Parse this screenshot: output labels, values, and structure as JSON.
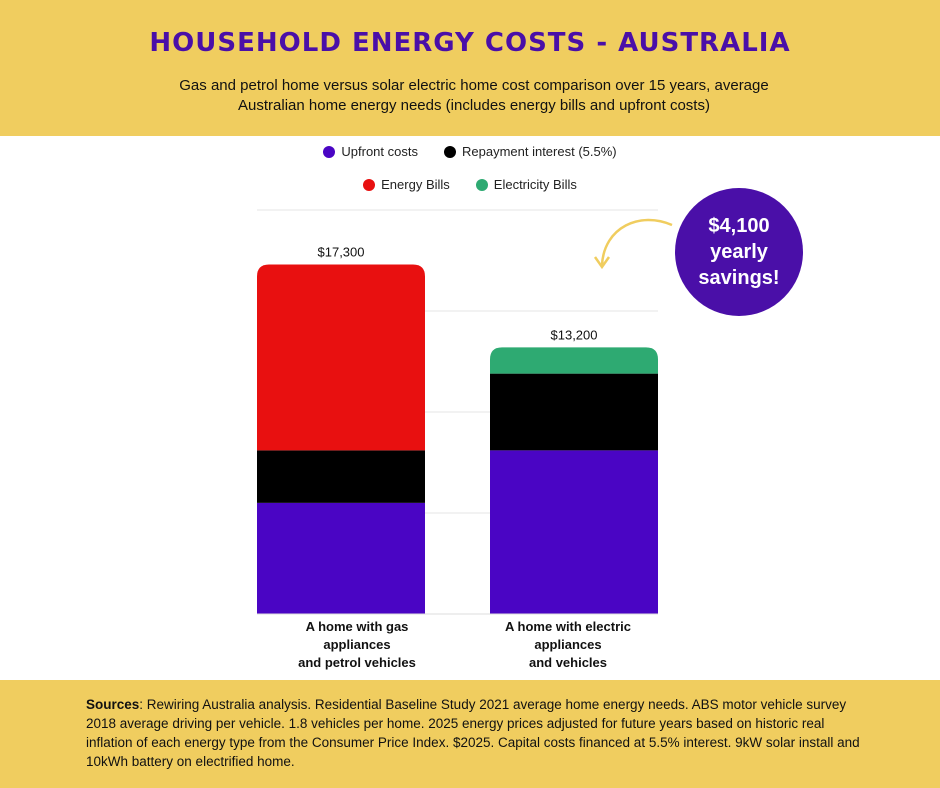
{
  "header": {
    "title": "Household energy costs - Australia",
    "subtitle": "Gas and petrol home versus solar electric home cost comparison over 15 years,  average Australian home energy needs (includes energy bills and upfront costs)"
  },
  "legend": {
    "row1": [
      {
        "label": "Upfront costs",
        "color": "#4a05c4"
      },
      {
        "label": "Repayment interest (5.5%)",
        "color": "#000000"
      }
    ],
    "row2": [
      {
        "label": "Energy Bills",
        "color": "#e81010"
      },
      {
        "label": "Electricity Bills",
        "color": "#2eaa72"
      }
    ]
  },
  "chart_data": {
    "type": "bar",
    "stacked": true,
    "categories": [
      "A home with gas appliances and petrol vehicles",
      "A home with electric appliances and vehicles"
    ],
    "category_labels": [
      "A home with gas\nappliances\nand petrol vehicles",
      "A home with electric\nappliances\nand vehicles"
    ],
    "series": [
      {
        "name": "Upfront costs",
        "color": "#4a05c4",
        "values": [
          5500,
          8100
        ]
      },
      {
        "name": "Repayment interest (5.5%)",
        "color": "#000000",
        "values": [
          2600,
          3800
        ]
      },
      {
        "name": "Energy Bills",
        "color": "#e81010",
        "values": [
          9200,
          0
        ]
      },
      {
        "name": "Electricity Bills",
        "color": "#2eaa72",
        "values": [
          0,
          1300
        ]
      }
    ],
    "totals": [
      17300,
      13200
    ],
    "total_labels": [
      "$17,300",
      "$13,200"
    ],
    "ylim": [
      0,
      20000
    ],
    "grid": true,
    "legend_position": "top"
  },
  "annotation": {
    "savings": "$4,100\nyearly\nsavings!",
    "arrow_color": "#f0cd5f"
  },
  "footer": {
    "sources_label": "Sources",
    "sources_text": ": Rewiring Australia analysis. Residential Baseline Study 2021 average home energy needs. ABS motor vehicle survey 2018 average driving per vehicle. 1.8 vehicles per home. 2025 energy prices adjusted for future years based on historic real inflation of each energy type from the Consumer Price Index. $2025. Capital costs financed at 5.5% interest. 9kW solar install and 10kWh battery on electrified home."
  }
}
